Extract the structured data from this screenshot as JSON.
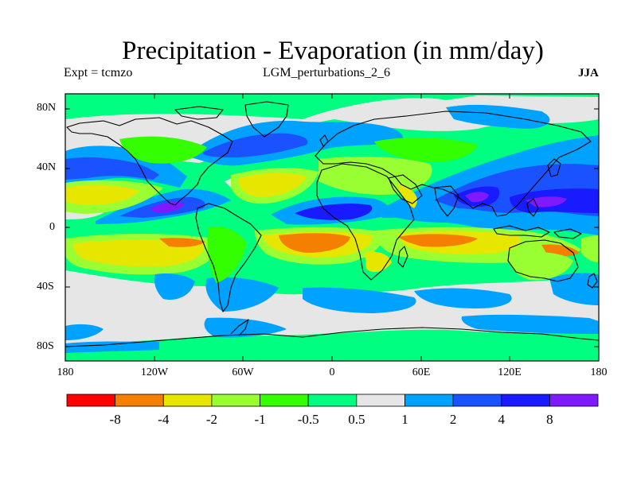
{
  "title": "Precipitation - Evaporation (in mm/day)",
  "experiment": "Expt = tcmzo",
  "run": "LGM_perturbations_2_6",
  "season": "JJA",
  "y_ticks": [
    "80N",
    "40N",
    "0",
    "40S",
    "80S"
  ],
  "x_ticks": [
    "180",
    "120W",
    "60W",
    "0",
    "60E",
    "120E",
    "180"
  ],
  "colorbar": {
    "colors": [
      "#ff0000",
      "#f57f00",
      "#e6e600",
      "#99ff33",
      "#33ff00",
      "#00ff80",
      "#e6e6e6",
      "#00a2ff",
      "#1a52ff",
      "#1a1aff",
      "#7f1aff"
    ],
    "labels": [
      "-8",
      "-4",
      "-2",
      "-1",
      "-0.5",
      "0.5",
      "1",
      "2",
      "4",
      "8"
    ]
  },
  "palette": {
    "background": "#00ff80",
    "neutral": "#e6e6e6",
    "wet_1_2": "#00a2ff",
    "wet_2_4": "#1a52ff",
    "wet_4_8": "#1a1aff",
    "wet_gt8": "#7f1aff",
    "dry_05_1": "#33ff00",
    "dry_1_2": "#99ff33",
    "dry_2_4": "#e6e600",
    "dry_4_8": "#f57f00",
    "coast": "#000000"
  }
}
